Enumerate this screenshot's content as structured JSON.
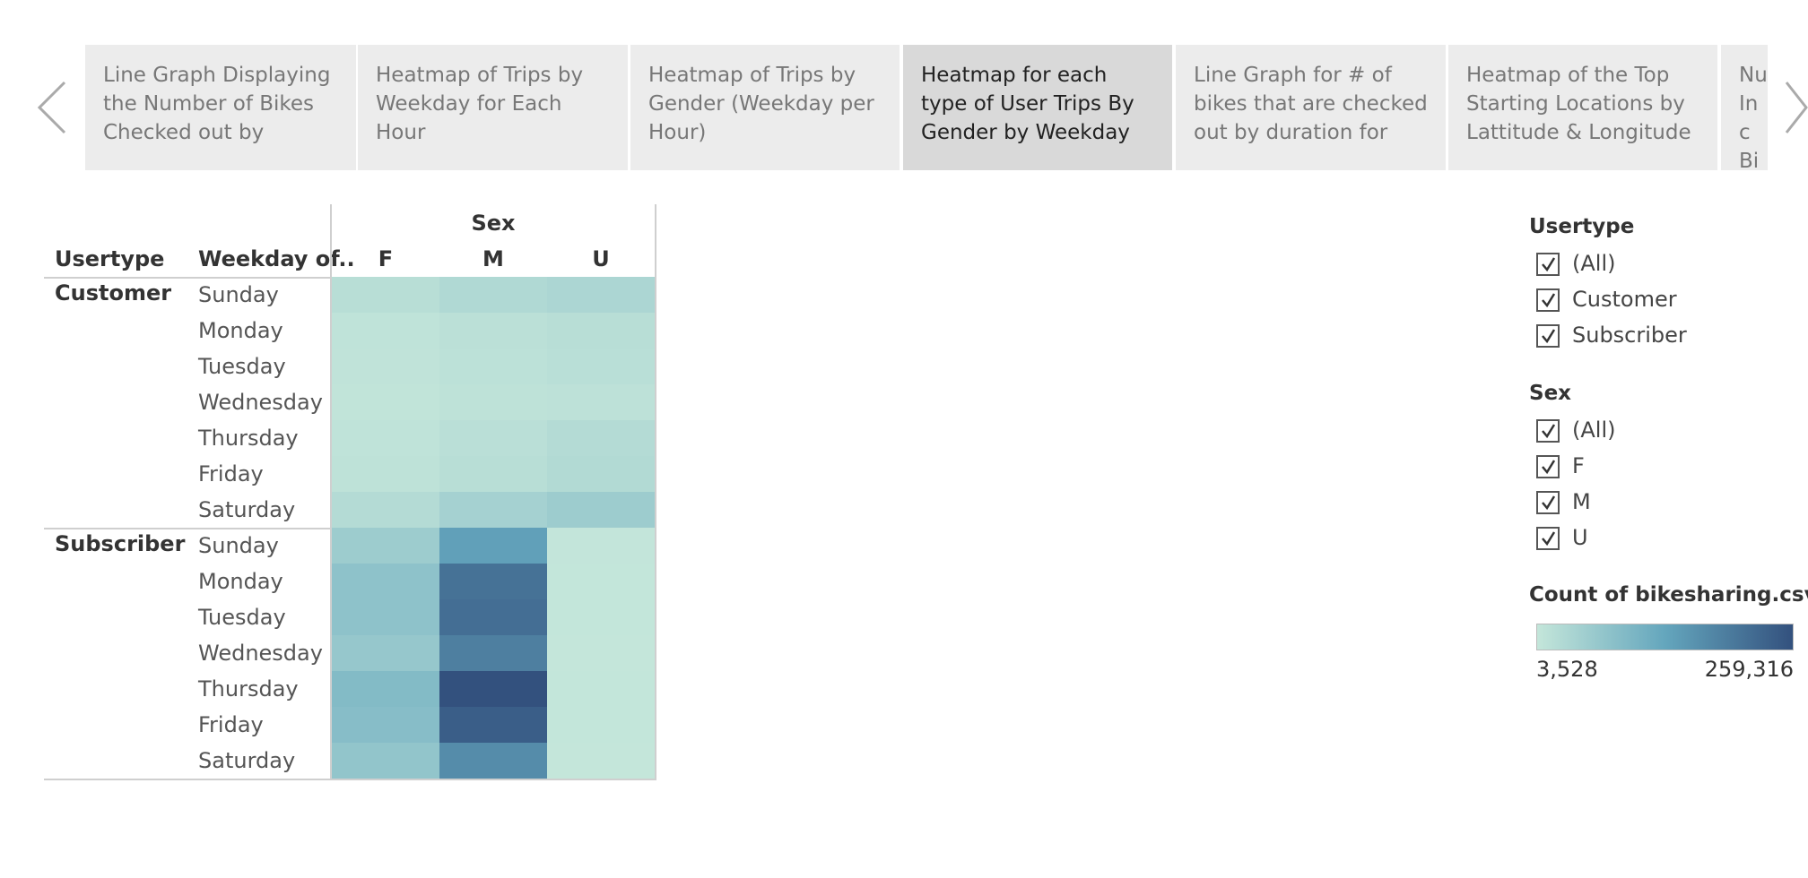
{
  "tabs": [
    "Line Graph Displaying the Number of Bikes Checked out by",
    "Heatmap of Trips by Weekday for Each Hour",
    "Heatmap of Trips by Gender (Weekday per Hour)",
    "Heatmap for each type of User Trips By Gender by Weekday",
    "Line Graph for # of bikes that are checked out by duration for",
    "Heatmap of the Top Starting Locations by Lattitude & Longitude",
    "Nu Inc Bik"
  ],
  "active_tab": 3,
  "filters": [
    {
      "title": "Usertype",
      "items": [
        "(All)",
        "Customer",
        "Subscriber"
      ]
    },
    {
      "title": "Sex",
      "items": [
        "(All)",
        "F",
        "M",
        "U"
      ]
    }
  ],
  "chart_data": {
    "type": "heatmap",
    "column_title": "Sex",
    "row_header": "Usertype",
    "row_header2": "Weekday of..",
    "columns": [
      "F",
      "M",
      "U"
    ],
    "groups": [
      {
        "name": "Customer",
        "weekdays": [
          "Sunday",
          "Monday",
          "Tuesday",
          "Wednesday",
          "Thursday",
          "Friday",
          "Saturday"
        ],
        "values": [
          [
            20000,
            30000,
            35000
          ],
          [
            10000,
            15000,
            20000
          ],
          [
            9000,
            14000,
            18000
          ],
          [
            8000,
            12000,
            13000
          ],
          [
            10000,
            17000,
            25000
          ],
          [
            12000,
            20000,
            28000
          ],
          [
            25000,
            45000,
            55000
          ]
        ]
      },
      {
        "name": "Subscriber",
        "weekdays": [
          "Sunday",
          "Monday",
          "Tuesday",
          "Wednesday",
          "Thursday",
          "Friday",
          "Saturday"
        ],
        "values": [
          [
            55000,
            140000,
            5000
          ],
          [
            75000,
            210000,
            4500
          ],
          [
            75000,
            215000,
            4500
          ],
          [
            65000,
            190000,
            3528
          ],
          [
            90000,
            259316,
            4500
          ],
          [
            85000,
            240000,
            4500
          ],
          [
            70000,
            170000,
            4000
          ]
        ]
      }
    ],
    "color_scale": {
      "title": "Count of bikesharing.csv",
      "range": [
        {
          "value": 3528,
          "label": "3,528"
        },
        {
          "value": 259316,
          "label": "259,316"
        }
      ],
      "colors": [
        "#c4e6da",
        "#64a6bd",
        "#33517e"
      ]
    }
  }
}
